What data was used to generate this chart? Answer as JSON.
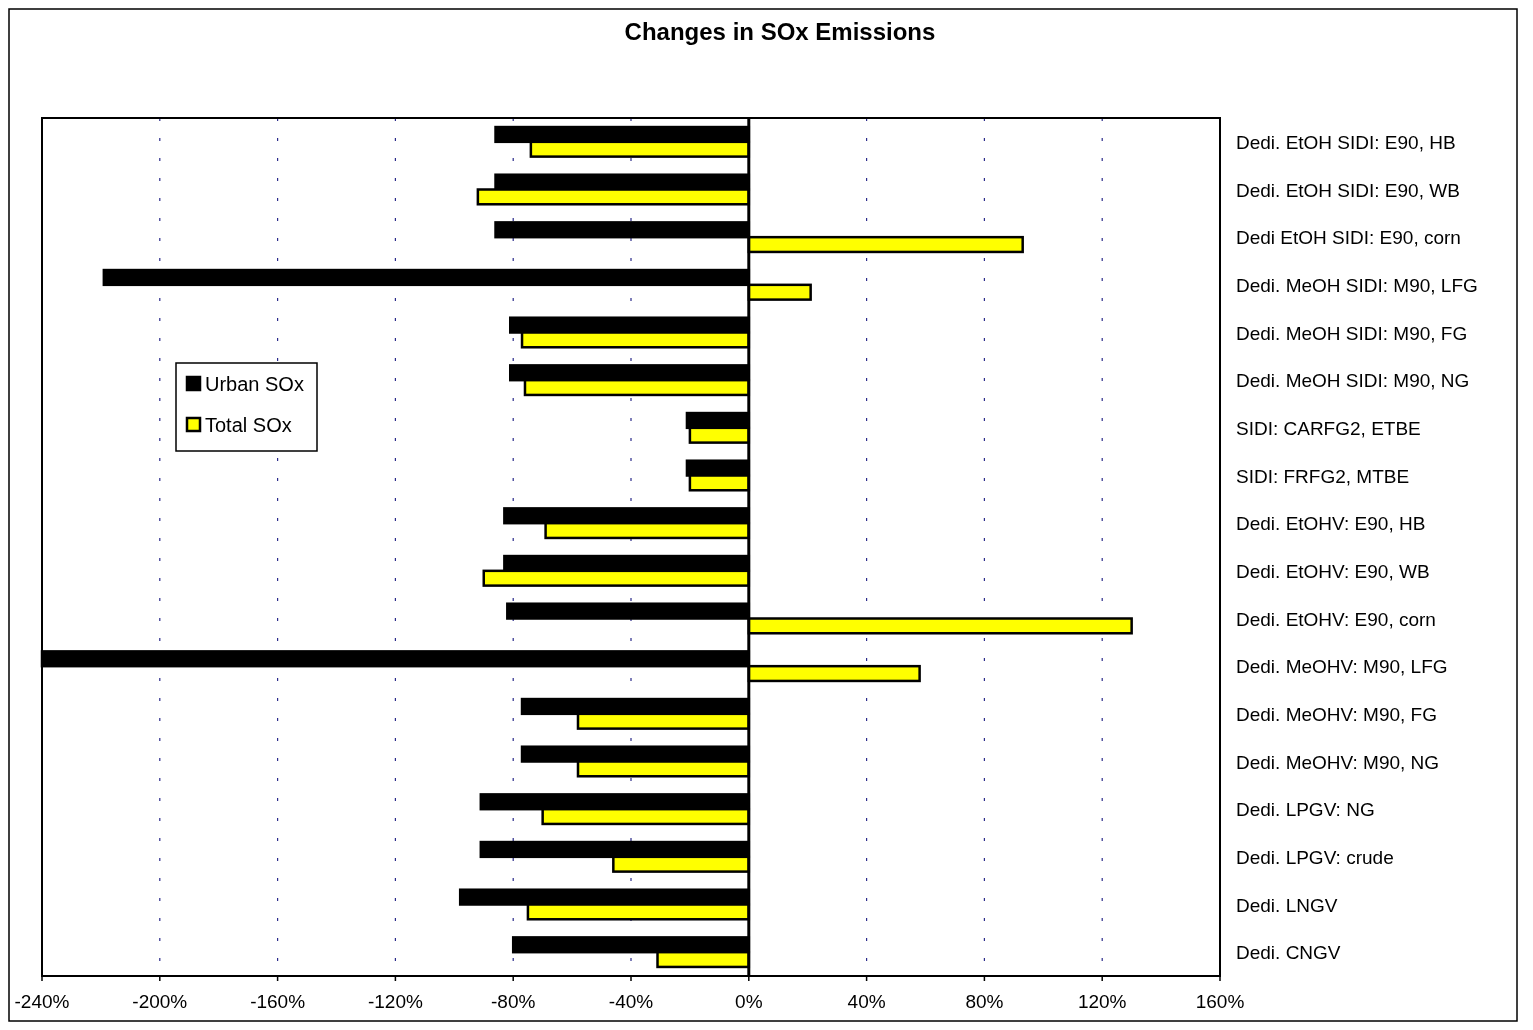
{
  "chart_data": {
    "type": "bar",
    "orientation": "horizontal",
    "title": "Changes in SOx Emissions",
    "categories": [
      "Dedi. EtOH SIDI: E90, HB",
      "Dedi. EtOH SIDI: E90, WB",
      "Dedi EtOH SIDI: E90, corn",
      "Dedi. MeOH SIDI: M90, LFG",
      "Dedi. MeOH SIDI: M90, FG",
      "Dedi. MeOH SIDI: M90, NG",
      "SIDI: CARFG2, ETBE",
      "SIDI: FRFG2, MTBE",
      "Dedi. EtOHV: E90, HB",
      "Dedi. EtOHV: E90, WB",
      "Dedi. EtOHV: E90, corn",
      "Dedi. MeOHV: M90, LFG",
      "Dedi. MeOHV: M90, FG",
      "Dedi. MeOHV: M90, NG",
      "Dedi. LPGV: NG",
      "Dedi. LPGV: crude",
      "Dedi. LNGV",
      "Dedi. CNGV"
    ],
    "series": [
      {
        "name": "Urban SOx",
        "color": "#000000",
        "values": [
          -86,
          -86,
          -86,
          -219,
          -81,
          -81,
          -21,
          -21,
          -83,
          -83,
          -82,
          -240,
          -77,
          -77,
          -91,
          -91,
          -98,
          -80
        ]
      },
      {
        "name": "Total SOx",
        "color": "#ffff00",
        "values": [
          -74,
          -92,
          93,
          21,
          -77,
          -76,
          -20,
          -20,
          -69,
          -90,
          130,
          58,
          -58,
          -58,
          -70,
          -46,
          -75,
          -31
        ]
      }
    ],
    "xlim": [
      -240,
      160
    ],
    "xticks": [
      {
        "value": -240,
        "label": "-240%"
      },
      {
        "value": -200,
        "label": "-200%"
      },
      {
        "value": -160,
        "label": "-160%"
      },
      {
        "value": -120,
        "label": "-120%"
      },
      {
        "value": -80,
        "label": "-80%"
      },
      {
        "value": -40,
        "label": "-40%"
      },
      {
        "value": 0,
        "label": "0%"
      },
      {
        "value": 40,
        "label": "40%"
      },
      {
        "value": 80,
        "label": "80%"
      },
      {
        "value": 120,
        "label": "120%"
      },
      {
        "value": 160,
        "label": "160%"
      }
    ],
    "grid": "x",
    "legend": "left"
  }
}
